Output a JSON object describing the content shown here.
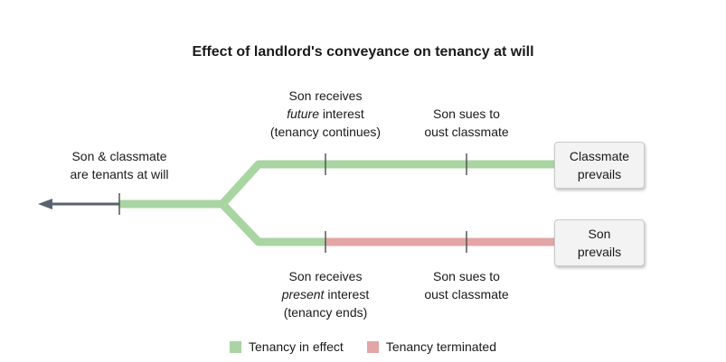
{
  "title": "Effect of landlord's conveyance on tenancy at will",
  "start": {
    "line1": "Son & classmate",
    "line2": "are tenants at will"
  },
  "upper_branch": {
    "event1": {
      "line1": "Son receives",
      "line2_em": "future",
      "line2_rest": " interest",
      "line3": "(tenancy continues)"
    },
    "event2": {
      "line1": "Son sues to",
      "line2": "oust classmate"
    },
    "outcome": {
      "line1": "Classmate",
      "line2": "prevails"
    }
  },
  "lower_branch": {
    "event1": {
      "line1": "Son receives",
      "line2_em": "present",
      "line2_rest": " interest",
      "line3": "(tenancy ends)"
    },
    "event2": {
      "line1": "Son sues to",
      "line2": "oust classmate"
    },
    "outcome": {
      "line1": "Son",
      "line2": "prevails"
    }
  },
  "legend": {
    "in_effect": {
      "label": "Tenancy in effect",
      "color": "#a8d5a2"
    },
    "terminated": {
      "label": "Tenancy terminated",
      "color": "#e3a5a5"
    }
  },
  "colors": {
    "arrow": "#5a6270",
    "tick": "#555555"
  }
}
